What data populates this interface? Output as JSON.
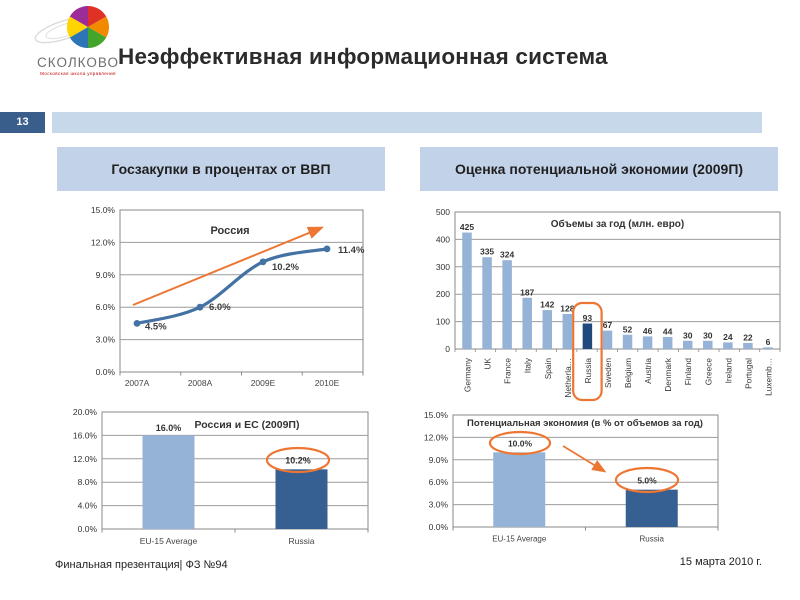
{
  "colors": {
    "light_blue_bar": "#95B3D7",
    "dark_blue_bar": "#1F497D",
    "medium_blue_bar": "#366092",
    "line_blue": "#4472A4",
    "orange": "#ED7633",
    "header_box_bg": "#C2D3E9",
    "slide_number_bg": "#3A5E8C",
    "title_strip_bg": "#C8D8EB",
    "grid_gray": "#9B9B9B"
  },
  "logo": {
    "brand": "СКОЛКОВО",
    "tagline": "Московская школа управления",
    "icon": "skolkovo-globe-icon"
  },
  "header": {
    "title": "Неэффективная информационная система",
    "slide_number": "13"
  },
  "panels": {
    "left_header": "Госзакупки в процентах от ВВП",
    "right_header": "Оценка потенциальной экономии (2009П)"
  },
  "footer": {
    "left": "Финальная презентация| ФЗ №94",
    "right": "15 марта 2010 г."
  },
  "chart_data": [
    {
      "id": "gdp-procurement-line",
      "type": "line",
      "title": "Россия",
      "categories": [
        "2007A",
        "2008A",
        "2009E",
        "2010E"
      ],
      "values": [
        4.5,
        6.0,
        10.2,
        11.4
      ],
      "point_labels": [
        "4.5%",
        "6.0%",
        "10.2%",
        "11.4%"
      ],
      "y_ticks": [
        "15.0%",
        "12.0%",
        "9.0%",
        "6.0%",
        "3.0%",
        "0.0%"
      ],
      "ylim": [
        0,
        15
      ],
      "annotation": "orange rising trend arrow across plot"
    },
    {
      "id": "savings-by-country-bars",
      "type": "bar",
      "title": "Объемы за год (млн. евро)",
      "categories": [
        "Germany",
        "UK",
        "France",
        "Italy",
        "Spain",
        "Netherla…",
        "Russia",
        "Sweden",
        "Belgium",
        "Austria",
        "Denmark",
        "Finland",
        "Greece",
        "Ireland",
        "Portugal",
        "Luxemb…"
      ],
      "values": [
        425,
        335,
        324,
        187,
        142,
        128,
        93,
        67,
        52,
        46,
        44,
        30,
        30,
        24,
        22,
        6
      ],
      "highlight_index": 6,
      "highlight_note": "Russia bar dark blue with orange rounded outline",
      "y_ticks": [
        "500",
        "400",
        "300",
        "200",
        "100",
        "0"
      ],
      "ylim": [
        0,
        500
      ]
    },
    {
      "id": "russia-vs-eu-bars",
      "type": "bar",
      "title": "Россия и ЕС (2009П)",
      "categories": [
        "EU-15 Average",
        "Russia"
      ],
      "values": [
        16.0,
        10.2
      ],
      "bar_labels": [
        "16.0%",
        "10.2%"
      ],
      "highlight_index": 1,
      "circled_labels": [
        1
      ],
      "y_ticks": [
        "20.0%",
        "16.0%",
        "12.0%",
        "8.0%",
        "4.0%",
        "0.0%"
      ],
      "ylim": [
        0,
        20
      ]
    },
    {
      "id": "potential-savings-percent-bars",
      "type": "bar",
      "title": "Потенциальная экономия (в % от объемов за год)",
      "categories": [
        "EU-15 Average",
        "Russia"
      ],
      "values": [
        10.0,
        5.0
      ],
      "bar_labels": [
        "10.0%",
        "5.0%"
      ],
      "highlight_index": 1,
      "circled_labels": [
        0,
        1
      ],
      "annotation": "orange arrow from EU-15 circle down toward Russia circle",
      "y_ticks": [
        "15.0%",
        "12.0%",
        "9.0%",
        "6.0%",
        "3.0%",
        "0.0%"
      ],
      "ylim": [
        0,
        15
      ]
    }
  ]
}
